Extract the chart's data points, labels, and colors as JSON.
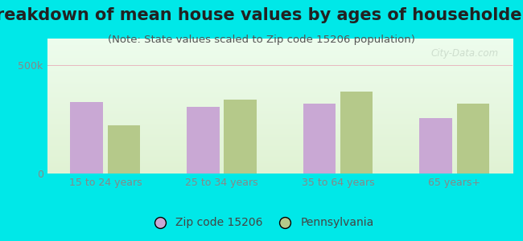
{
  "title": "Breakdown of mean house values by ages of householders",
  "subtitle": "(Note: State values scaled to Zip code 15206 population)",
  "categories": [
    "15 to 24 years",
    "25 to 34 years",
    "35 to 64 years",
    "65 years+"
  ],
  "zip_values": [
    330000,
    305000,
    320000,
    255000
  ],
  "state_values": [
    220000,
    340000,
    375000,
    320000
  ],
  "ylim": [
    0,
    620000
  ],
  "ytick_vals": [
    0,
    500000
  ],
  "ytick_labels": [
    "0",
    "500k"
  ],
  "zip_color": "#c9a8d4",
  "state_color": "#b5c98a",
  "background_color": "#00e8e8",
  "legend_zip": "Zip code 15206",
  "legend_state": "Pennsylvania",
  "bar_width": 0.28,
  "grid_color": "#e8b8c0",
  "title_fontsize": 15,
  "subtitle_fontsize": 9.5,
  "tick_fontsize": 9,
  "legend_fontsize": 10,
  "title_color": "#222222",
  "subtitle_color": "#555555",
  "tick_color": "#888888",
  "watermark": "City-Data.com",
  "watermark_color": "#c8d8c8"
}
